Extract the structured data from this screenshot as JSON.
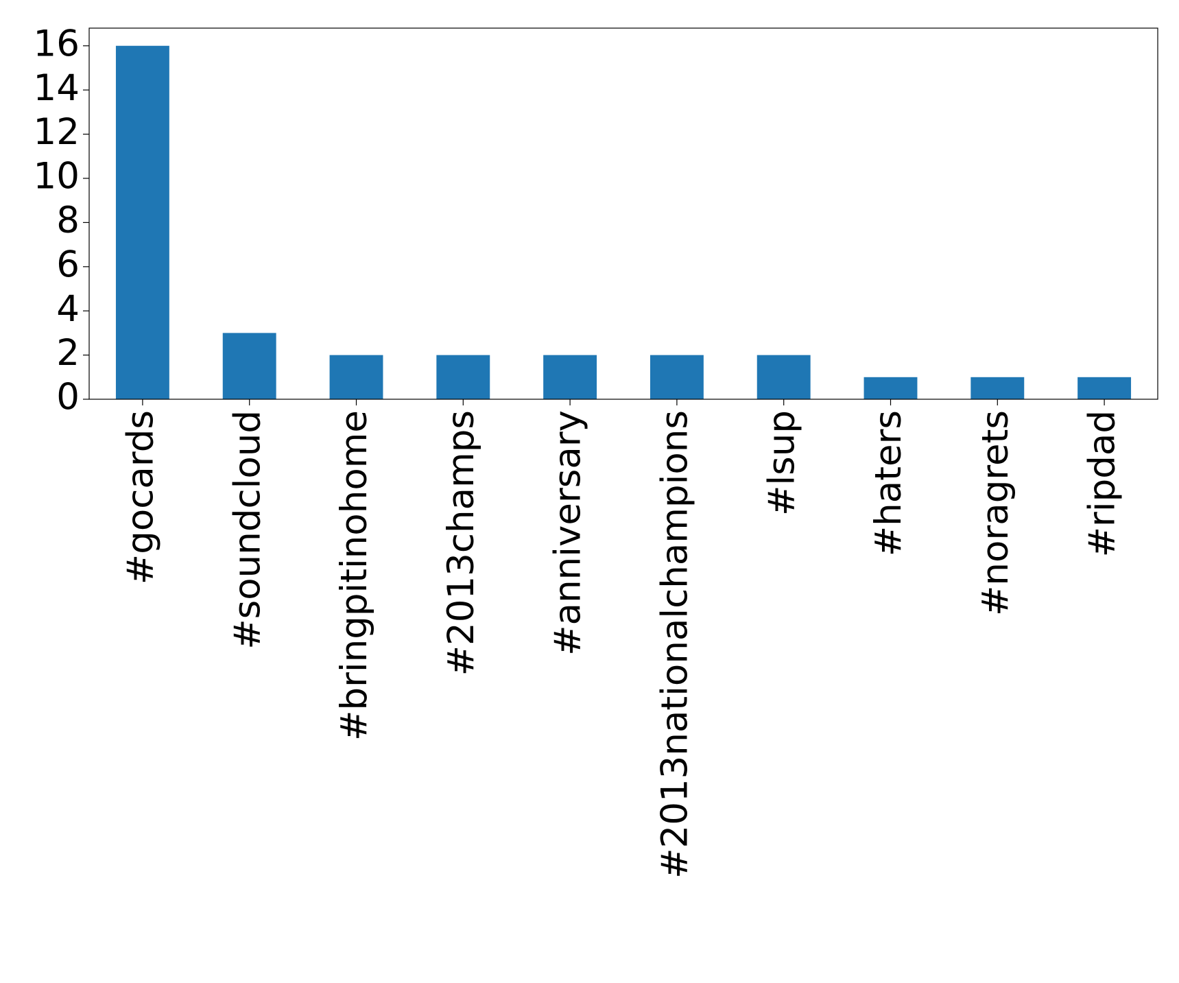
{
  "chart_data": {
    "type": "bar",
    "categories": [
      "#gocards",
      "#soundcloud",
      "#bringpitinohome",
      "#2013champs",
      "#anniversary",
      "#2013nationalchampions",
      "#lsup",
      "#haters",
      "#noragrets",
      "#ripdad"
    ],
    "values": [
      16,
      3,
      2,
      2,
      2,
      2,
      2,
      1,
      1,
      1
    ],
    "color": "#1f77b4",
    "ylim": [
      0,
      16.8
    ],
    "yticks": [
      0,
      2,
      4,
      6,
      8,
      10,
      12,
      14,
      16
    ],
    "grid": false
  }
}
